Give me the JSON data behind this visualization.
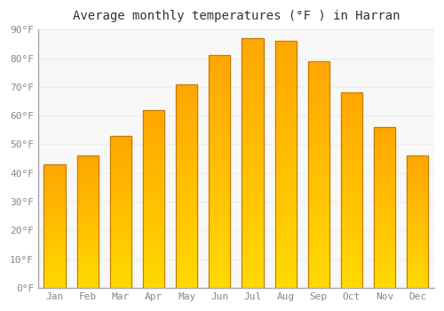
{
  "title": "Average monthly temperatures (°F ) in Harran",
  "months": [
    "Jan",
    "Feb",
    "Mar",
    "Apr",
    "May",
    "Jun",
    "Jul",
    "Aug",
    "Sep",
    "Oct",
    "Nov",
    "Dec"
  ],
  "values": [
    43,
    46,
    53,
    62,
    71,
    81,
    87,
    86,
    79,
    68,
    56,
    46
  ],
  "bar_color": "#FFA500",
  "bar_edge_color": "#C47A00",
  "background_color": "#FFFFFF",
  "plot_bg_color": "#F8F8F8",
  "grid_color": "#EEEEEE",
  "title_fontsize": 10,
  "tick_fontsize": 8,
  "ylim": [
    0,
    90
  ],
  "yticks": [
    0,
    10,
    20,
    30,
    40,
    50,
    60,
    70,
    80,
    90
  ]
}
